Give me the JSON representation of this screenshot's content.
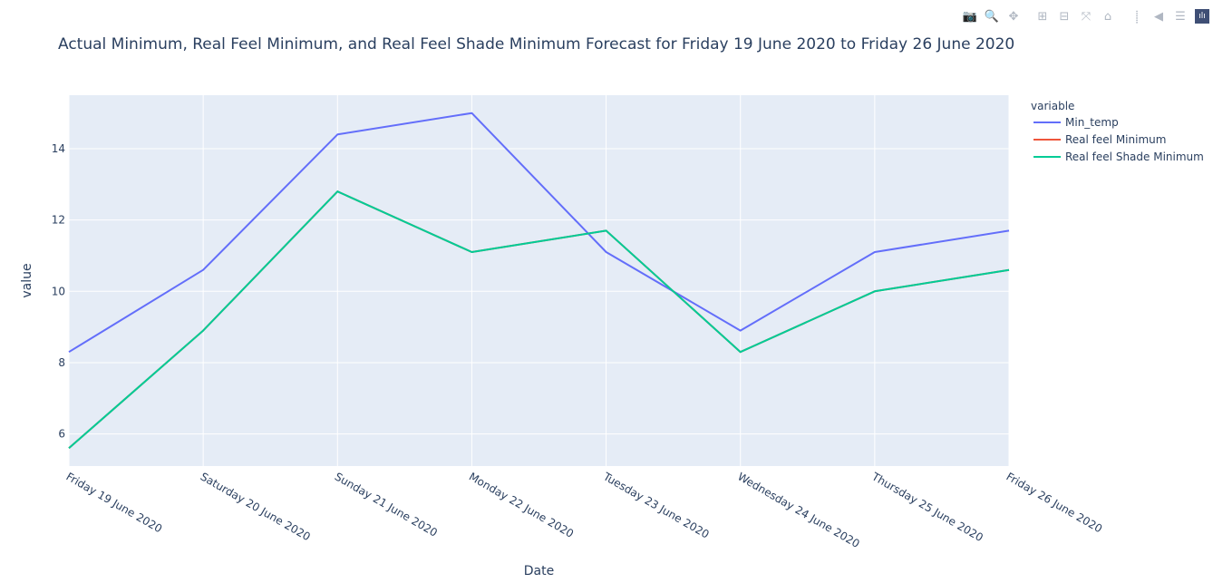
{
  "modebar": {
    "buttons": [
      {
        "name": "camera-icon",
        "glyph": "📷"
      },
      {
        "name": "zoom-icon",
        "glyph": "🔍",
        "active": true
      },
      {
        "name": "pan-icon",
        "glyph": "✥"
      },
      {
        "gap": true
      },
      {
        "name": "zoom-in-icon",
        "glyph": "⊞"
      },
      {
        "name": "zoom-out-icon",
        "glyph": "⊟"
      },
      {
        "name": "autoscale-icon",
        "glyph": "⤧"
      },
      {
        "name": "reset-axes-icon",
        "glyph": "⌂"
      },
      {
        "gap": true
      },
      {
        "name": "spike-lines-icon",
        "glyph": "⸽"
      },
      {
        "name": "hover-closest-icon",
        "glyph": "◀"
      },
      {
        "name": "hover-compare-icon",
        "glyph": "☰"
      }
    ],
    "logo_glyph": "ılı"
  },
  "chart_data": {
    "type": "line",
    "title": "Actual Minimum, Real Feel Minimum, and Real Feel Shade Minimum Forecast for Friday 19 June 2020 to Friday 26 June 2020",
    "xlabel": "Date",
    "ylabel": "value",
    "categories": [
      "Friday 19 June 2020",
      "Saturday 20 June 2020",
      "Sunday 21 June 2020",
      "Monday 22 June 2020",
      "Tuesday 23 June 2020",
      "Wednesday 24 June 2020",
      "Thursday 25 June 2020",
      "Friday 26 June 2020"
    ],
    "ylim": [
      5.1,
      15.5
    ],
    "yticks": [
      6,
      8,
      10,
      12,
      14
    ],
    "grid": true,
    "legend": {
      "title": "variable",
      "position": "top-right"
    },
    "series": [
      {
        "name": "Min_temp",
        "color": "#636efa",
        "values": [
          8.3,
          10.6,
          14.4,
          15.0,
          11.1,
          8.9,
          11.1,
          11.7
        ]
      },
      {
        "name": "Real feel Minimum",
        "color": "#ef553b",
        "values": [
          5.6,
          8.9,
          12.8,
          11.1,
          11.7,
          8.3,
          10.0,
          10.6
        ]
      },
      {
        "name": "Real feel Shade Minimum",
        "color": "#00cc96",
        "values": [
          5.6,
          8.9,
          12.8,
          11.1,
          11.7,
          8.3,
          10.0,
          10.6
        ]
      }
    ]
  }
}
